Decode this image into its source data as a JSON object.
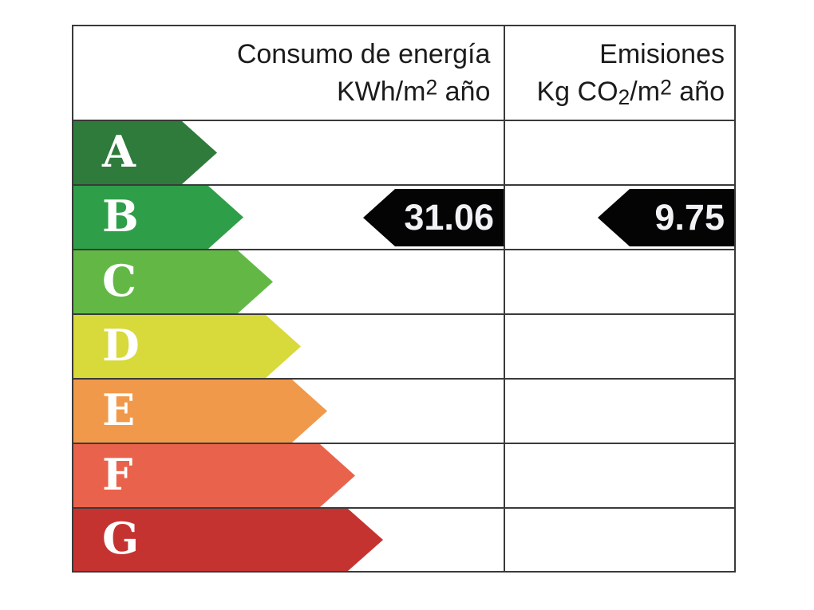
{
  "chart_data": {
    "type": "table",
    "columns": [
      "Consumo de energía KWh/m2 año",
      "Emisiones Kg CO2/m2 año"
    ],
    "categories": [
      "A",
      "B",
      "C",
      "D",
      "E",
      "F",
      "G"
    ],
    "indicated_rating": "B",
    "values": {
      "consumo_kwh_m2_ano": 31.06,
      "emisiones_kg_co2_m2_ano": 9.75
    }
  },
  "header": {
    "consumption": {
      "line1": "Consumo de energía",
      "line2_pre": "KWh/m",
      "line2_sup": "2",
      "line2_post": " año"
    },
    "emissions": {
      "line1": "Emisiones",
      "line2_pre": "Kg CO",
      "line2_sub": "2",
      "line2_mid": "/m",
      "line2_sup": "2",
      "line2_post": " año"
    }
  },
  "ratings": [
    {
      "letter": "A",
      "color": "#2e7b3c"
    },
    {
      "letter": "B",
      "color": "#2f9e48"
    },
    {
      "letter": "C",
      "color": "#63b845"
    },
    {
      "letter": "D",
      "color": "#d8d93a"
    },
    {
      "letter": "E",
      "color": "#f1994a"
    },
    {
      "letter": "F",
      "color": "#e9634c"
    },
    {
      "letter": "G",
      "color": "#c53331"
    }
  ],
  "values": {
    "consumption": "31.06",
    "emissions": "9.75"
  },
  "colors": {
    "border": "#3a3a3a",
    "value_arrow": "#040404",
    "value_text": "#f2f2f6",
    "letter_text": "#ffffff",
    "header_text": "#1b1b1b",
    "background": "#ffffff"
  }
}
